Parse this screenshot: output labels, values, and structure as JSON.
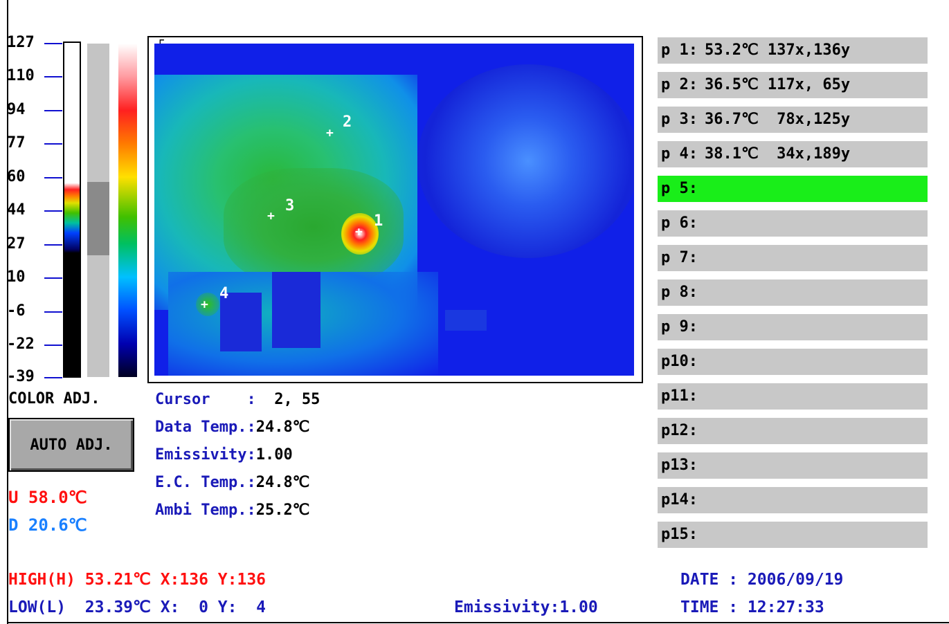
{
  "scale": {
    "labels": [
      "127",
      "110",
      "94",
      "77",
      "60",
      "44",
      "27",
      "10",
      "-6",
      "-22",
      "-39"
    ],
    "line_color": "#1010d0"
  },
  "thermal": {
    "markers": [
      {
        "label": "1"
      },
      {
        "label": "2"
      },
      {
        "label": "3"
      },
      {
        "label": "4"
      }
    ],
    "corner_glyph": "┌"
  },
  "points": [
    {
      "label": "p 1:",
      "value": "53.2℃ 137x,136y",
      "active": false
    },
    {
      "label": "p 2:",
      "value": "36.5℃ 117x, 65y",
      "active": false
    },
    {
      "label": "p 3:",
      "value": "36.7℃  78x,125y",
      "active": false
    },
    {
      "label": "p 4:",
      "value": "38.1℃  34x,189y",
      "active": false
    },
    {
      "label": "p 5:",
      "value": "",
      "active": true
    },
    {
      "label": "p 6:",
      "value": "",
      "active": false
    },
    {
      "label": "p 7:",
      "value": "",
      "active": false
    },
    {
      "label": "p 8:",
      "value": "",
      "active": false
    },
    {
      "label": "p 9:",
      "value": "",
      "active": false
    },
    {
      "label": "p10:",
      "value": "",
      "active": false
    },
    {
      "label": "p11:",
      "value": "",
      "active": false
    },
    {
      "label": "p12:",
      "value": "",
      "active": false
    },
    {
      "label": "p13:",
      "value": "",
      "active": false
    },
    {
      "label": "p14:",
      "value": "",
      "active": false
    },
    {
      "label": "p15:",
      "value": "",
      "active": false
    }
  ],
  "info": {
    "cursor_label": "Cursor    :",
    "cursor_value": "  2, 55",
    "data_temp_label": "Data Temp.:",
    "data_temp_value": "24.8℃",
    "emissivity_label": "Emissivity:",
    "emissivity_value": "1.00",
    "ec_temp_label": "E.C. Temp.:",
    "ec_temp_value": "24.8℃",
    "ambi_temp_label": "Ambi Temp.:",
    "ambi_temp_value": "25.2℃"
  },
  "controls": {
    "color_adj_label": "COLOR ADJ.",
    "auto_adj_label": "AUTO ADJ.",
    "upper": "U 58.0℃",
    "lower": "D 20.6℃"
  },
  "status": {
    "high": "HIGH(H) 53.21℃ X:136 Y:136",
    "low": "LOW(L)  23.39℃ X:  0 Y:  4",
    "emissivity": "Emissivity:1.00",
    "date": "DATE : 2006/09/19",
    "time": "TIME : 12:27:33"
  },
  "colors": {
    "active_row": "#19ee19",
    "row": "#c8c8c8",
    "label_blue": "#1a1ab8",
    "high_red": "#ff1010",
    "lower_blue": "#1a80ff"
  }
}
